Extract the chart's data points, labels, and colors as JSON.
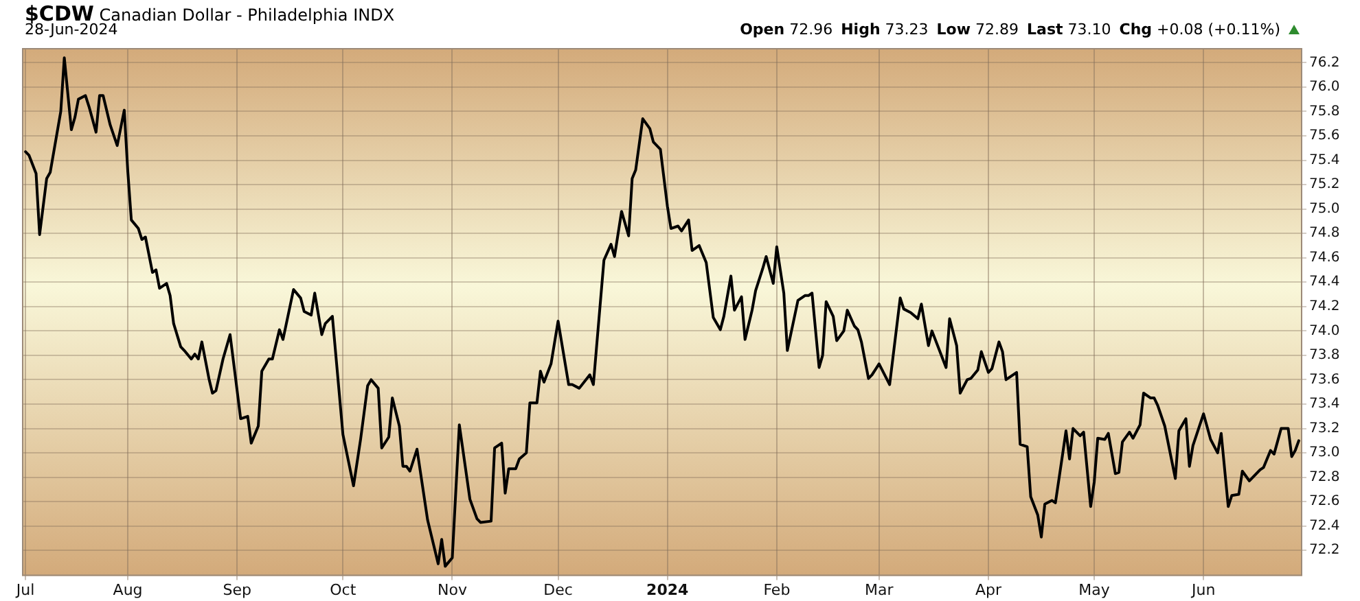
{
  "chart_data": {
    "type": "line",
    "title": "$CDW Canadian Dollar - Philadelphia INDX",
    "subtitle": "28-Jun-2024",
    "annotations": [
      "Open 72.96",
      "High 73.23",
      "Low 72.89",
      "Last 73.10",
      "Chg +0.08 (+0.11%)"
    ],
    "x": [
      "2023-07-03",
      "2023-07-04",
      "2023-07-06",
      "2023-07-07",
      "2023-07-09",
      "2023-07-10",
      "2023-07-13",
      "2023-07-14",
      "2023-07-16",
      "2023-07-17",
      "2023-07-18",
      "2023-07-20",
      "2023-07-21",
      "2023-07-23",
      "2023-07-24",
      "2023-07-25",
      "2023-07-27",
      "2023-07-29",
      "2023-07-31",
      "2023-08-01",
      "2023-08-02",
      "2023-08-04",
      "2023-08-05",
      "2023-08-06",
      "2023-08-08",
      "2023-08-09",
      "2023-08-10",
      "2023-08-12",
      "2023-08-13",
      "2023-08-14",
      "2023-08-16",
      "2023-08-17",
      "2023-08-19",
      "2023-08-20",
      "2023-08-21",
      "2023-08-22",
      "2023-08-24",
      "2023-08-25",
      "2023-08-26",
      "2023-08-28",
      "2023-08-30",
      "2023-09-02",
      "2023-09-04",
      "2023-09-05",
      "2023-09-07",
      "2023-09-08",
      "2023-09-10",
      "2023-09-11",
      "2023-09-13",
      "2023-09-14",
      "2023-09-17",
      "2023-09-19",
      "2023-09-20",
      "2023-09-22",
      "2023-09-23",
      "2023-09-25",
      "2023-09-26",
      "2023-09-28",
      "2023-10-01",
      "2023-10-04",
      "2023-10-06",
      "2023-10-08",
      "2023-10-09",
      "2023-10-11",
      "2023-10-12",
      "2023-10-14",
      "2023-10-15",
      "2023-10-17",
      "2023-10-18",
      "2023-10-19",
      "2023-10-20",
      "2023-10-22",
      "2023-10-25",
      "2023-10-28",
      "2023-10-29",
      "2023-10-30",
      "2023-11-01",
      "2023-11-03",
      "2023-11-06",
      "2023-11-08",
      "2023-11-09",
      "2023-11-12",
      "2023-11-13",
      "2023-11-15",
      "2023-11-16",
      "2023-11-17",
      "2023-11-19",
      "2023-11-20",
      "2023-11-22",
      "2023-11-23",
      "2023-11-25",
      "2023-11-26",
      "2023-11-27",
      "2023-11-29",
      "2023-12-01",
      "2023-12-04",
      "2023-12-05",
      "2023-12-07",
      "2023-12-10",
      "2023-12-11",
      "2023-12-14",
      "2023-12-16",
      "2023-12-17",
      "2023-12-19",
      "2023-12-21",
      "2023-12-22",
      "2023-12-23",
      "2023-12-25",
      "2023-12-27",
      "2023-12-28",
      "2023-12-30",
      "2024-01-01",
      "2024-01-02",
      "2024-01-04",
      "2024-01-05",
      "2024-01-07",
      "2024-01-08",
      "2024-01-10",
      "2024-01-12",
      "2024-01-14",
      "2024-01-16",
      "2024-01-17",
      "2024-01-19",
      "2024-01-20",
      "2024-01-22",
      "2024-01-23",
      "2024-01-25",
      "2024-01-26",
      "2024-01-28",
      "2024-01-29",
      "2024-01-31",
      "2024-02-01",
      "2024-02-03",
      "2024-02-04",
      "2024-02-07",
      "2024-02-09",
      "2024-02-10",
      "2024-02-11",
      "2024-02-13",
      "2024-02-14",
      "2024-02-15",
      "2024-02-17",
      "2024-02-18",
      "2024-02-20",
      "2024-02-21",
      "2024-02-23",
      "2024-02-24",
      "2024-02-25",
      "2024-02-27",
      "2024-02-28",
      "2024-03-01",
      "2024-03-04",
      "2024-03-07",
      "2024-03-08",
      "2024-03-10",
      "2024-03-12",
      "2024-03-13",
      "2024-03-15",
      "2024-03-16",
      "2024-03-20",
      "2024-03-21",
      "2024-03-23",
      "2024-03-24",
      "2024-03-26",
      "2024-03-27",
      "2024-03-29",
      "2024-03-30",
      "2024-04-01",
      "2024-04-02",
      "2024-04-04",
      "2024-04-05",
      "2024-04-06",
      "2024-04-09",
      "2024-04-10",
      "2024-04-12",
      "2024-04-13",
      "2024-04-15",
      "2024-04-16",
      "2024-04-17",
      "2024-04-19",
      "2024-04-20",
      "2024-04-22",
      "2024-04-23",
      "2024-04-24",
      "2024-04-25",
      "2024-04-27",
      "2024-04-28",
      "2024-04-30",
      "2024-05-01",
      "2024-05-02",
      "2024-05-04",
      "2024-05-05",
      "2024-05-07",
      "2024-05-08",
      "2024-05-09",
      "2024-05-11",
      "2024-05-12",
      "2024-05-14",
      "2024-05-15",
      "2024-05-17",
      "2024-05-18",
      "2024-05-19",
      "2024-05-21",
      "2024-05-24",
      "2024-05-25",
      "2024-05-27",
      "2024-05-28",
      "2024-05-29",
      "2024-06-01",
      "2024-06-03",
      "2024-06-05",
      "2024-06-06",
      "2024-06-08",
      "2024-06-09",
      "2024-06-11",
      "2024-06-12",
      "2024-06-14",
      "2024-06-17",
      "2024-06-18",
      "2024-06-20",
      "2024-06-21",
      "2024-06-23",
      "2024-06-25",
      "2024-06-26",
      "2024-06-27",
      "2024-06-28"
    ],
    "series": [
      {
        "color": "#000000",
        "values": [
          75.47,
          75.44,
          75.29,
          74.79,
          75.25,
          75.3,
          75.8,
          76.24,
          75.65,
          75.75,
          75.9,
          75.93,
          75.84,
          75.63,
          75.93,
          75.93,
          75.69,
          75.52,
          75.81,
          75.31,
          74.91,
          74.84,
          74.75,
          74.77,
          74.48,
          74.5,
          74.35,
          74.39,
          74.29,
          74.06,
          73.87,
          73.84,
          73.77,
          73.81,
          73.77,
          73.91,
          73.61,
          73.49,
          73.51,
          73.77,
          73.97,
          73.28,
          73.3,
          73.08,
          73.22,
          73.67,
          73.77,
          73.77,
          74.01,
          73.93,
          74.34,
          74.27,
          74.16,
          74.13,
          74.31,
          73.97,
          74.06,
          74.12,
          73.15,
          72.73,
          73.11,
          73.55,
          73.6,
          73.53,
          73.04,
          73.13,
          73.45,
          73.22,
          72.89,
          72.89,
          72.85,
          73.03,
          72.45,
          72.09,
          72.29,
          72.07,
          72.14,
          73.23,
          72.62,
          72.46,
          72.43,
          72.44,
          73.04,
          73.08,
          72.67,
          72.87,
          72.87,
          72.95,
          73.0,
          73.41,
          73.41,
          73.67,
          73.58,
          73.73,
          74.08,
          73.56,
          73.56,
          73.53,
          73.64,
          73.56,
          74.58,
          74.71,
          74.61,
          74.98,
          74.78,
          75.25,
          75.32,
          75.74,
          75.66,
          75.55,
          75.49,
          75.02,
          74.84,
          74.86,
          74.82,
          74.91,
          74.66,
          74.7,
          74.56,
          74.11,
          74.01,
          74.12,
          74.45,
          74.17,
          74.28,
          73.93,
          74.17,
          74.33,
          74.51,
          74.61,
          74.39,
          74.69,
          74.31,
          73.84,
          74.25,
          74.29,
          74.29,
          74.31,
          73.7,
          73.8,
          74.24,
          74.12,
          73.92,
          74.0,
          74.17,
          74.04,
          74.01,
          73.91,
          73.61,
          73.64,
          73.73,
          73.56,
          74.27,
          74.18,
          74.15,
          74.1,
          74.22,
          73.88,
          74.0,
          73.7,
          74.1,
          73.88,
          73.49,
          73.6,
          73.61,
          73.68,
          73.83,
          73.66,
          73.69,
          73.91,
          73.83,
          73.6,
          73.66,
          73.07,
          73.05,
          72.64,
          72.49,
          72.31,
          72.58,
          72.61,
          72.59,
          72.98,
          73.18,
          72.95,
          73.2,
          73.14,
          73.17,
          72.56,
          72.76,
          73.12,
          73.11,
          73.16,
          72.83,
          72.84,
          73.09,
          73.17,
          73.12,
          73.23,
          73.49,
          73.45,
          73.45,
          73.39,
          73.22,
          72.79,
          73.18,
          73.28,
          72.89,
          73.06,
          73.32,
          73.11,
          73.0,
          73.16,
          72.56,
          72.65,
          72.66,
          72.85,
          72.77,
          72.86,
          72.88,
          73.02,
          72.99,
          73.2,
          73.2,
          72.97,
          73.02,
          73.1
        ]
      }
    ],
    "xlim": [
      "2023-07-02",
      "2024-06-29"
    ],
    "xticks": [
      {
        "value": "2023-07-03",
        "label": "Jul"
      },
      {
        "value": "2023-08-01",
        "label": "Aug"
      },
      {
        "value": "2023-09-01",
        "label": "Sep"
      },
      {
        "value": "2023-10-01",
        "label": "Oct"
      },
      {
        "value": "2023-11-01",
        "label": "Nov"
      },
      {
        "value": "2023-12-01",
        "label": "Dec"
      },
      {
        "value": "2024-01-01",
        "label": "2024"
      },
      {
        "value": "2024-02-01",
        "label": "Feb"
      },
      {
        "value": "2024-03-01",
        "label": "Mar"
      },
      {
        "value": "2024-04-01",
        "label": "Apr"
      },
      {
        "value": "2024-05-01",
        "label": "May"
      },
      {
        "value": "2024-06-01",
        "label": "Jun"
      }
    ],
    "ylim": [
      71.99,
      76.32
    ],
    "yticks": [
      {
        "value": 72.2,
        "label": "72.2"
      },
      {
        "value": 72.4,
        "label": "72.4"
      },
      {
        "value": 72.6,
        "label": "72.6"
      },
      {
        "value": 72.8,
        "label": "72.8"
      },
      {
        "value": 73.0,
        "label": "73.0"
      },
      {
        "value": 73.2,
        "label": "73.2"
      },
      {
        "value": 73.4,
        "label": "73.4"
      },
      {
        "value": 73.6,
        "label": "73.6"
      },
      {
        "value": 73.8,
        "label": "73.8"
      },
      {
        "value": 74.0,
        "label": "74.0"
      },
      {
        "value": 74.2,
        "label": "74.2"
      },
      {
        "value": 74.4,
        "label": "74.4"
      },
      {
        "value": 74.6,
        "label": "74.6"
      },
      {
        "value": 74.8,
        "label": "74.8"
      },
      {
        "value": 75.0,
        "label": "75.0"
      },
      {
        "value": 75.2,
        "label": "75.2"
      },
      {
        "value": 75.4,
        "label": "75.4"
      },
      {
        "value": 75.6,
        "label": "75.6"
      },
      {
        "value": 75.8,
        "label": "75.8"
      },
      {
        "value": 76.0,
        "label": "76.0"
      },
      {
        "value": 76.2,
        "label": "76.2"
      }
    ],
    "grid": true,
    "legend": false,
    "marker": "none",
    "line_style": "solid"
  }
}
